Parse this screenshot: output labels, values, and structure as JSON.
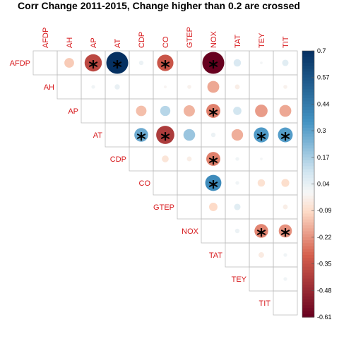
{
  "chart_data": {
    "type": "heatmap",
    "subtype": "correlation-upper-circles",
    "title": "Corr Change 2011-2015, Change higher than 0.2 are crossed",
    "variables": [
      "AFDP",
      "AH",
      "AP",
      "AT",
      "CDP",
      "CO",
      "GTEP",
      "NOX",
      "TAT",
      "TEY",
      "TIT"
    ],
    "matrix": [
      [
        null,
        -0.12,
        -0.38,
        0.7,
        0.03,
        -0.34,
        0.0,
        -0.61,
        0.08,
        0.01,
        0.06
      ],
      [
        null,
        null,
        0.02,
        0.04,
        0.0,
        -0.01,
        -0.02,
        -0.18,
        -0.03,
        0.0,
        -0.02
      ],
      [
        null,
        null,
        null,
        0.0,
        -0.14,
        0.15,
        -0.16,
        -0.25,
        0.1,
        -0.2,
        -0.18
      ],
      [
        null,
        null,
        null,
        null,
        0.28,
        -0.42,
        0.2,
        0.03,
        -0.17,
        0.33,
        0.32
      ],
      [
        null,
        null,
        null,
        null,
        null,
        -0.06,
        -0.03,
        -0.25,
        0.02,
        0.01,
        0.0
      ],
      [
        null,
        null,
        null,
        null,
        null,
        null,
        0.0,
        0.38,
        0.02,
        -0.07,
        -0.08
      ],
      [
        null,
        null,
        null,
        null,
        null,
        null,
        null,
        -0.09,
        0.06,
        0.0,
        -0.03
      ],
      [
        null,
        null,
        null,
        null,
        null,
        null,
        null,
        null,
        0.03,
        -0.24,
        -0.22
      ],
      [
        null,
        null,
        null,
        null,
        null,
        null,
        null,
        null,
        null,
        -0.04,
        0.02
      ],
      [
        null,
        null,
        null,
        null,
        null,
        null,
        null,
        null,
        null,
        null,
        0.02
      ],
      [
        null,
        null,
        null,
        null,
        null,
        null,
        null,
        null,
        null,
        null,
        null
      ]
    ],
    "crossed_threshold": 0.2,
    "marker": "*",
    "colorbar": {
      "min": -0.61,
      "max": 0.7,
      "ticks": [
        "0.7",
        "0.57",
        "0.44",
        "0.3",
        "0.17",
        "0.04",
        "-0.09",
        "-0.22",
        "-0.35",
        "-0.48",
        "-0.61"
      ]
    },
    "colors": {
      "neg_strong": "#67001f",
      "neg_mid": "#d6604d",
      "neg_light": "#fddbc7",
      "neutral": "#f7f7f7",
      "pos_light": "#d1e5f0",
      "pos_mid": "#4393c3",
      "pos_strong": "#053061",
      "label": "#d7191c",
      "grid": "#bfbfbf"
    }
  }
}
